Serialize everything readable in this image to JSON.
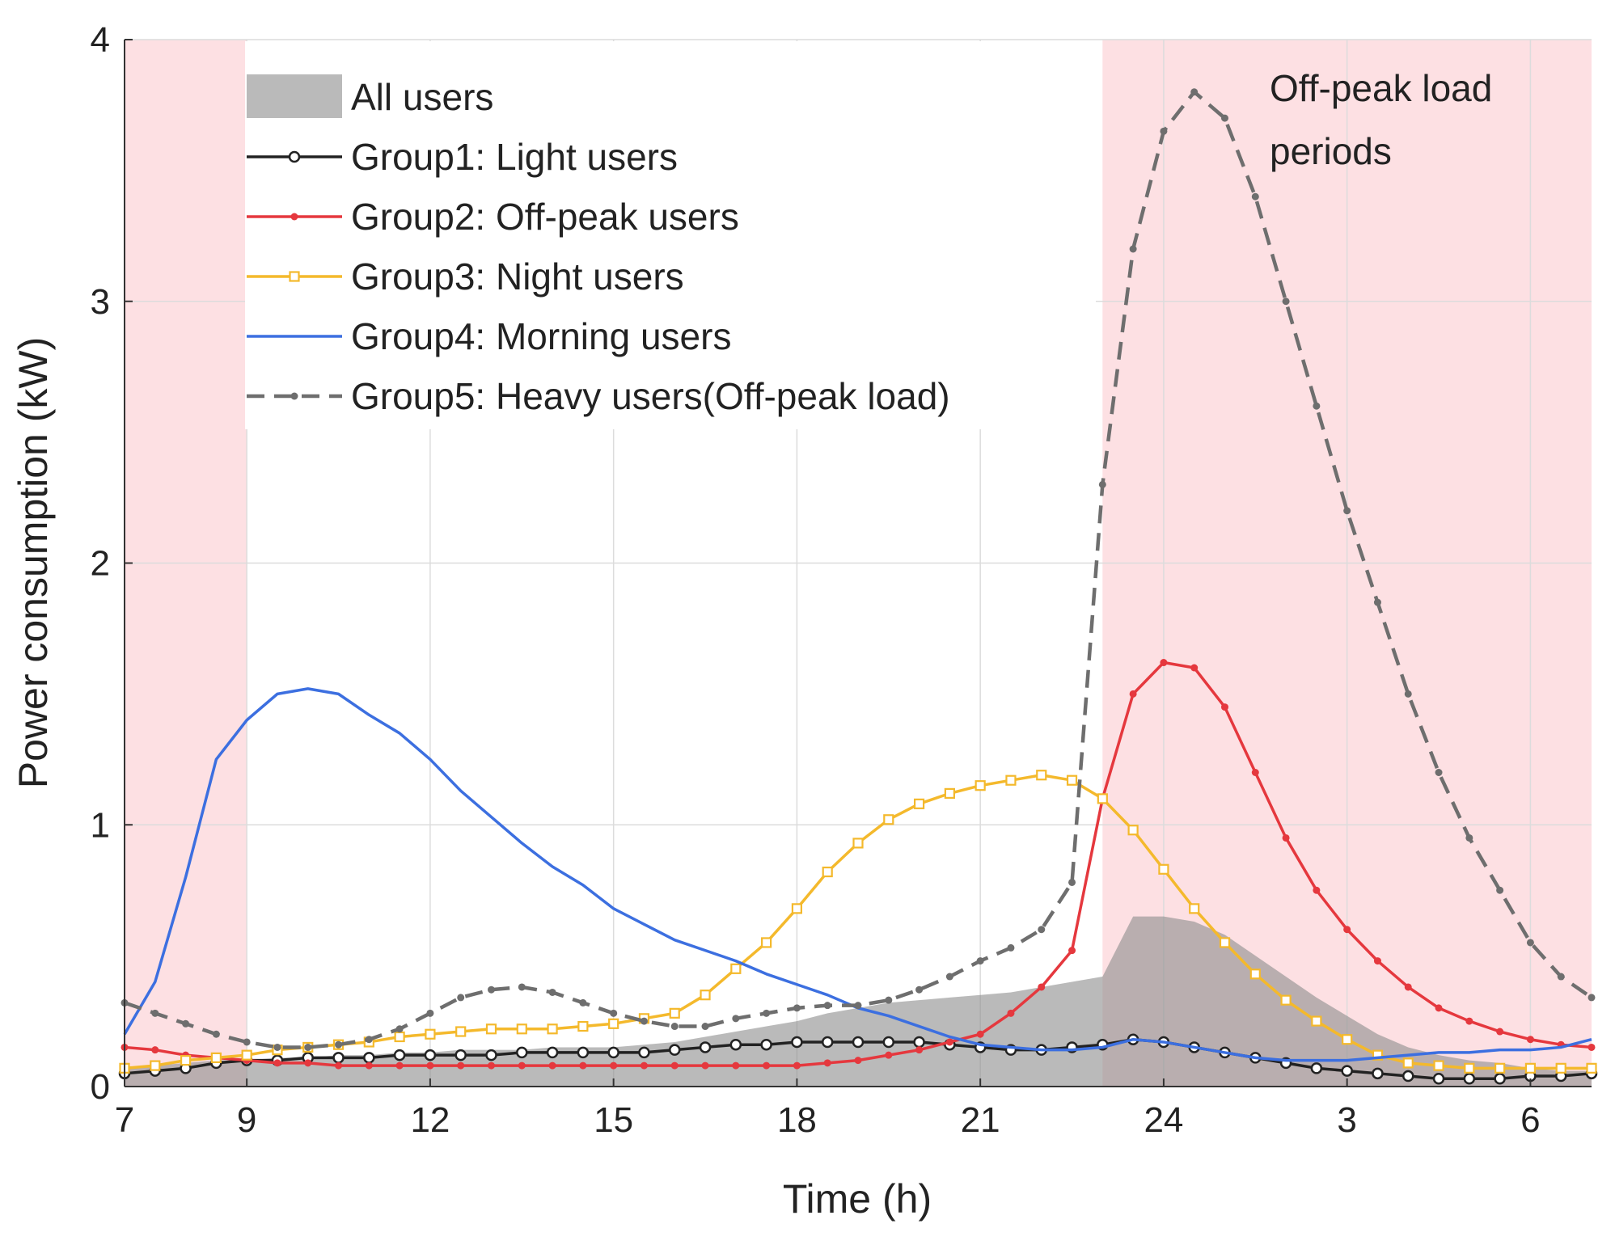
{
  "chart_data": {
    "type": "line",
    "xlabel": "Time (h)",
    "ylabel": "Power consumption (kW)",
    "xlim": [
      7,
      31
    ],
    "ylim": [
      0,
      4
    ],
    "xticks": [
      7,
      9,
      12,
      15,
      18,
      21,
      24,
      {
        "value": 27,
        "label": "3"
      },
      {
        "value": 30,
        "label": "6"
      }
    ],
    "yticks": [
      0,
      1,
      2,
      3,
      4
    ],
    "grid": true,
    "legend": "upper left",
    "shaded_regions": [
      [
        7,
        9
      ],
      [
        23,
        31
      ]
    ],
    "shaded_color": "#fde0e3",
    "annotation": [
      "Off-peak load",
      "periods"
    ],
    "x": [
      7,
      7.5,
      8,
      8.5,
      9,
      9.5,
      10,
      10.5,
      11,
      11.5,
      12,
      12.5,
      13,
      13.5,
      14,
      14.5,
      15,
      15.5,
      16,
      16.5,
      17,
      17.5,
      18,
      18.5,
      19,
      19.5,
      20,
      20.5,
      21,
      21.5,
      22,
      22.5,
      23,
      23.5,
      24,
      24.5,
      25,
      25.5,
      26,
      26.5,
      27,
      27.5,
      28,
      28.5,
      29,
      29.5,
      30,
      30.5,
      31
    ],
    "area": {
      "name": "All users",
      "color": "#8c8c8c",
      "values": [
        0.07,
        0.08,
        0.09,
        0.1,
        0.1,
        0.11,
        0.11,
        0.12,
        0.12,
        0.13,
        0.13,
        0.14,
        0.14,
        0.14,
        0.15,
        0.15,
        0.15,
        0.16,
        0.17,
        0.19,
        0.21,
        0.23,
        0.25,
        0.28,
        0.3,
        0.32,
        0.33,
        0.34,
        0.35,
        0.36,
        0.38,
        0.4,
        0.42,
        0.65,
        0.65,
        0.63,
        0.58,
        0.5,
        0.42,
        0.34,
        0.27,
        0.2,
        0.15,
        0.12,
        0.1,
        0.09,
        0.07,
        0.06,
        0.06
      ]
    },
    "series": [
      {
        "name": "Group1: Light users",
        "color": "#222222",
        "marker": "circle",
        "dash": false,
        "values": [
          0.05,
          0.06,
          0.07,
          0.09,
          0.1,
          0.1,
          0.11,
          0.11,
          0.11,
          0.12,
          0.12,
          0.12,
          0.12,
          0.13,
          0.13,
          0.13,
          0.13,
          0.13,
          0.14,
          0.15,
          0.16,
          0.16,
          0.17,
          0.17,
          0.17,
          0.17,
          0.17,
          0.16,
          0.15,
          0.14,
          0.14,
          0.15,
          0.16,
          0.18,
          0.17,
          0.15,
          0.13,
          0.11,
          0.09,
          0.07,
          0.06,
          0.05,
          0.04,
          0.03,
          0.03,
          0.03,
          0.04,
          0.04,
          0.05
        ]
      },
      {
        "name": "Group2: Off-peak users",
        "color": "#e5383e",
        "marker": "dot",
        "dash": false,
        "values": [
          0.15,
          0.14,
          0.12,
          0.11,
          0.1,
          0.09,
          0.09,
          0.08,
          0.08,
          0.08,
          0.08,
          0.08,
          0.08,
          0.08,
          0.08,
          0.08,
          0.08,
          0.08,
          0.08,
          0.08,
          0.08,
          0.08,
          0.08,
          0.09,
          0.1,
          0.12,
          0.14,
          0.17,
          0.2,
          0.28,
          0.38,
          0.52,
          1.1,
          1.5,
          1.62,
          1.6,
          1.45,
          1.2,
          0.95,
          0.75,
          0.6,
          0.48,
          0.38,
          0.3,
          0.25,
          0.21,
          0.18,
          0.16,
          0.15
        ]
      },
      {
        "name": "Group3: Night users",
        "color": "#f4b92c",
        "marker": "square",
        "dash": false,
        "values": [
          0.07,
          0.08,
          0.1,
          0.11,
          0.12,
          0.14,
          0.15,
          0.16,
          0.17,
          0.19,
          0.2,
          0.21,
          0.22,
          0.22,
          0.22,
          0.23,
          0.24,
          0.26,
          0.28,
          0.35,
          0.45,
          0.55,
          0.68,
          0.82,
          0.93,
          1.02,
          1.08,
          1.12,
          1.15,
          1.17,
          1.19,
          1.17,
          1.1,
          0.98,
          0.83,
          0.68,
          0.55,
          0.43,
          0.33,
          0.25,
          0.18,
          0.12,
          0.09,
          0.08,
          0.07,
          0.07,
          0.07,
          0.07,
          0.07
        ]
      },
      {
        "name": "Group4: Morning users",
        "color": "#3c6fe0",
        "marker": "none",
        "dash": false,
        "values": [
          0.2,
          0.4,
          0.8,
          1.25,
          1.4,
          1.5,
          1.52,
          1.5,
          1.42,
          1.35,
          1.25,
          1.13,
          1.03,
          0.93,
          0.84,
          0.77,
          0.68,
          0.62,
          0.56,
          0.52,
          0.48,
          0.43,
          0.39,
          0.35,
          0.3,
          0.27,
          0.23,
          0.19,
          0.16,
          0.15,
          0.14,
          0.14,
          0.15,
          0.18,
          0.17,
          0.15,
          0.13,
          0.11,
          0.1,
          0.1,
          0.1,
          0.11,
          0.12,
          0.13,
          0.13,
          0.14,
          0.14,
          0.15,
          0.18
        ]
      },
      {
        "name": "Group5: Heavy users(Off-peak load)",
        "color": "#6e6e6e",
        "marker": "dot",
        "dash": true,
        "values": [
          0.32,
          0.28,
          0.24,
          0.2,
          0.17,
          0.15,
          0.15,
          0.16,
          0.18,
          0.22,
          0.28,
          0.34,
          0.37,
          0.38,
          0.36,
          0.32,
          0.28,
          0.25,
          0.23,
          0.23,
          0.26,
          0.28,
          0.3,
          0.31,
          0.31,
          0.33,
          0.37,
          0.42,
          0.48,
          0.53,
          0.6,
          0.78,
          2.3,
          3.2,
          3.65,
          3.8,
          3.7,
          3.4,
          3.0,
          2.6,
          2.2,
          1.85,
          1.5,
          1.2,
          0.95,
          0.75,
          0.55,
          0.42,
          0.34
        ]
      }
    ]
  }
}
